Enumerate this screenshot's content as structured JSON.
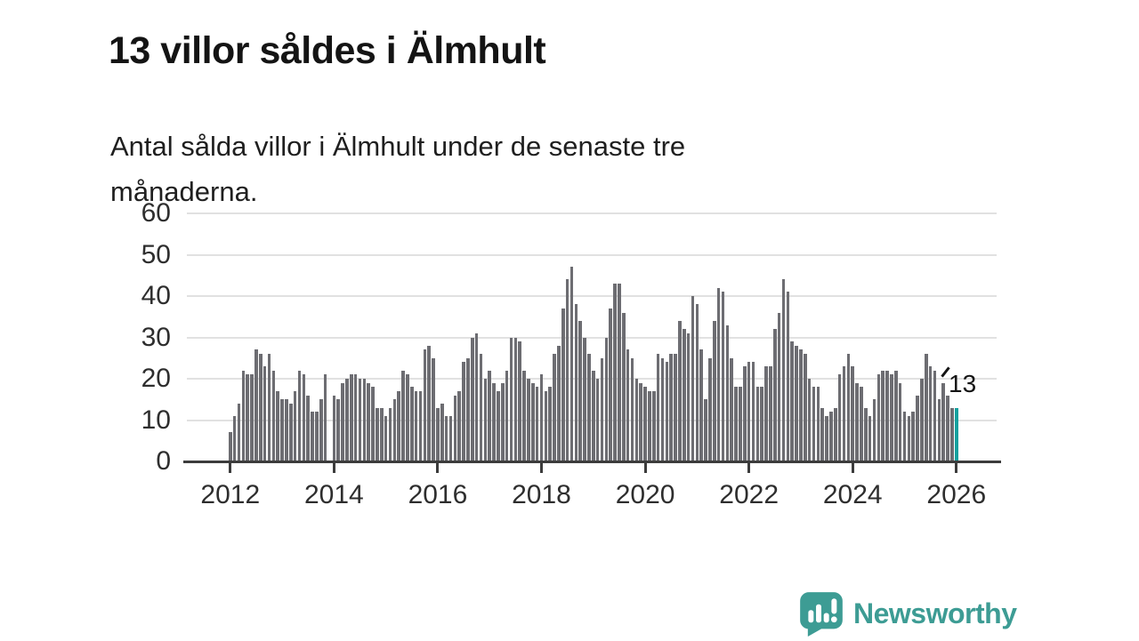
{
  "header": {
    "title": "13 villor såldes i Älmhult",
    "subtitle": "Antal sålda villor i Älmhult under de senaste tre månaderna."
  },
  "chart_data": {
    "type": "bar",
    "title": "13 villor såldes i Älmhult",
    "subtitle": "Antal sålda villor i Älmhult under de senaste tre månaderna.",
    "xlabel": "",
    "ylabel": "",
    "ylim": [
      0,
      60
    ],
    "yticks": [
      0,
      10,
      20,
      30,
      40,
      50,
      60
    ],
    "xticks": [
      2012,
      2014,
      2016,
      2018,
      2020,
      2022,
      2024,
      2026
    ],
    "x_start_year": 2012,
    "points_per_month": 1,
    "grid": true,
    "legend": "none",
    "bar_color": "#6d6d72",
    "highlight_color": "#14a09e",
    "highlight_last": true,
    "highlight_value_label": "13",
    "values": [
      7,
      11,
      14,
      22,
      21,
      21,
      27,
      26,
      23,
      26,
      22,
      17,
      15,
      15,
      14,
      17,
      22,
      21,
      16,
      12,
      12,
      15,
      21,
      0,
      16,
      15,
      19,
      20,
      21,
      21,
      20,
      20,
      19,
      18,
      13,
      13,
      11,
      13,
      15,
      17,
      22,
      21,
      18,
      17,
      17,
      27,
      28,
      25,
      13,
      14,
      11,
      11,
      16,
      17,
      24,
      25,
      30,
      31,
      26,
      20,
      22,
      19,
      17,
      19,
      22,
      30,
      30,
      29,
      22,
      20,
      19,
      18,
      21,
      17,
      18,
      26,
      28,
      37,
      44,
      47,
      38,
      34,
      30,
      26,
      22,
      20,
      25,
      30,
      37,
      43,
      43,
      36,
      27,
      25,
      20,
      19,
      18,
      17,
      17,
      26,
      25,
      24,
      26,
      26,
      34,
      32,
      31,
      40,
      38,
      27,
      15,
      25,
      34,
      42,
      41,
      33,
      25,
      18,
      18,
      23,
      24,
      24,
      18,
      18,
      23,
      23,
      32,
      36,
      44,
      41,
      29,
      28,
      27,
      26,
      20,
      18,
      18,
      13,
      11,
      12,
      13,
      21,
      23,
      26,
      23,
      19,
      18,
      13,
      11,
      15,
      21,
      22,
      22,
      21,
      22,
      19,
      12,
      11,
      12,
      16,
      20,
      26,
      23,
      22,
      15,
      19,
      16,
      13,
      13
    ]
  },
  "annotation": {
    "label": "13"
  },
  "footer": {
    "brand": "Newsworthy",
    "logo_icon": "newsworthy-chart-bubble-icon",
    "brand_color": "#3d9c94"
  }
}
